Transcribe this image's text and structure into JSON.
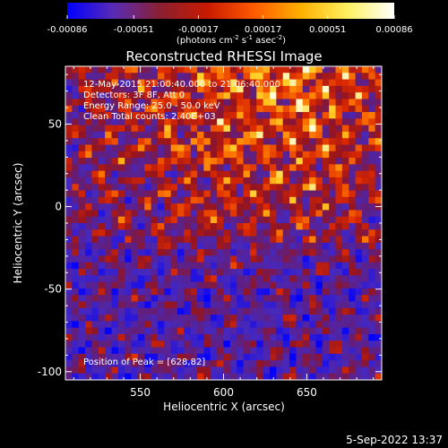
{
  "chart_data": {
    "type": "heatmap",
    "title": "Reconstructed RHESSI Image",
    "xlabel": "Heliocentric X (arcsec)",
    "ylabel": "Heliocentric Y (arcsec)",
    "xlim": [
      505,
      695
    ],
    "ylim": [
      -105,
      85
    ],
    "x_ticks": [
      550,
      600,
      650
    ],
    "y_ticks": [
      -100,
      -50,
      0,
      50
    ],
    "colorbar": {
      "range": [
        -0.00086,
        0.00086
      ],
      "tick_values": [
        -0.00086,
        -0.00051,
        -0.00017,
        0.00017,
        0.00051,
        0.00086
      ],
      "tick_labels": [
        "-0.00086",
        "-0.00051",
        "-0.00017",
        "0.00017",
        "0.00051",
        "0.00086"
      ],
      "colors": [
        "#0000ff",
        "#5a2bb5",
        "#8a2030",
        "#c81a00",
        "#ff5a00",
        "#ffb000",
        "#fff060",
        "#ffffff"
      ]
    },
    "annotations": [
      "12-May-2015 21:00:40.000 to 21:06:40.000",
      "Detectors: 3F 8F, Att 0",
      "Energy Range: 25.0 - 50.0 keV",
      "Clean    Total counts: 2.40E+03"
    ],
    "peak": {
      "label": "Position of Peak = [628,82]",
      "x": 628,
      "y": 82
    }
  },
  "colorbar_unit": {
    "base": "(photons cm",
    "exp1": "-2",
    "mid1": " s",
    "exp2": "-1",
    "mid2": " asec",
    "exp3": "-2",
    "close": ")"
  },
  "footer": {
    "date": "5-Sep-2022 13:37"
  }
}
